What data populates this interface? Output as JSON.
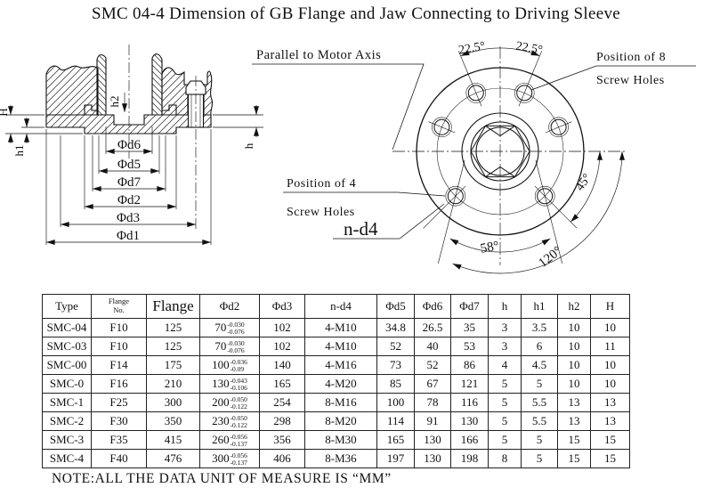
{
  "title": "SMC 04-4 Dimension of GB Flange and Jaw Connecting to Driving Sleeve",
  "note": "NOTE:ALL THE DATA UNIT OF MEASURE IS “MM”",
  "section_view": {
    "h2": "h2",
    "H": "H",
    "h1": "h1",
    "h": "h",
    "d6": "Φd6",
    "d5": "Φd5",
    "d7": "Φd7",
    "d2": "Φd2",
    "d3": "Φd3",
    "d1": "Φd1"
  },
  "front_view": {
    "parallel": "Parallel to Motor Axis",
    "pos8_1": "Position of 8",
    "pos8_2": "Screw Holes",
    "pos4_1": "Position of 4",
    "pos4_2": "Screw Holes",
    "nd4": "n-d4",
    "ang_left": "22.5°",
    "ang_right": "22.5°",
    "ang45": "45°",
    "ang58": "58°",
    "ang120": "120°"
  },
  "table": {
    "columns": [
      {
        "key": "type",
        "label": "Type",
        "width": 55
      },
      {
        "key": "flange_no",
        "label_lines": [
          "Flange",
          "No."
        ],
        "width": 62
      },
      {
        "key": "flange",
        "label": "Flange",
        "big": true,
        "width": 60
      },
      {
        "key": "d2",
        "label": "Φd2",
        "width": 67
      },
      {
        "key": "d3",
        "label": "Φd3",
        "width": 51
      },
      {
        "key": "n_d4",
        "label": "n-d4",
        "width": 81
      },
      {
        "key": "d5",
        "label": "Φd5",
        "width": 42
      },
      {
        "key": "d6",
        "label": "Φd6",
        "width": 41
      },
      {
        "key": "d7",
        "label": "Φd7",
        "width": 42
      },
      {
        "key": "h",
        "label": "h",
        "width": 37
      },
      {
        "key": "h1",
        "label": "h1",
        "width": 41
      },
      {
        "key": "h2",
        "label": "h2",
        "width": 37
      },
      {
        "key": "H",
        "label": "H",
        "width": 44
      }
    ],
    "rows": [
      {
        "type": "SMC-04",
        "flange_no": "F10",
        "flange": "125",
        "d2": {
          "base": "70",
          "upper": "-0.030",
          "lower": "-0.076"
        },
        "d3": "102",
        "n_d4": "4-M10",
        "d5": "34.8",
        "d6": "26.5",
        "d7": "35",
        "h": "3",
        "h1": "3.5",
        "h2": "10",
        "H": "10"
      },
      {
        "type": "SMC-03",
        "flange_no": "F10",
        "flange": "125",
        "d2": {
          "base": "70",
          "upper": "-0.030",
          "lower": "-0.076"
        },
        "d3": "102",
        "n_d4": "4-M10",
        "d5": "52",
        "d6": "40",
        "d7": "53",
        "h": "3",
        "h1": "6",
        "h2": "10",
        "H": "11"
      },
      {
        "type": "SMC-00",
        "flange_no": "F14",
        "flange": "175",
        "d2": {
          "base": "100",
          "upper": "-0.036",
          "lower": "-0.09"
        },
        "d3": "140",
        "n_d4": "4-M16",
        "d5": "73",
        "d6": "52",
        "d7": "86",
        "h": "4",
        "h1": "4.5",
        "h2": "10",
        "H": "10"
      },
      {
        "type": "SMC-0",
        "flange_no": "F16",
        "flange": "210",
        "d2": {
          "base": "130",
          "upper": "-0.043",
          "lower": "-0.106"
        },
        "d3": "165",
        "n_d4": "4-M20",
        "d5": "85",
        "d6": "67",
        "d7": "121",
        "h": "5",
        "h1": "5",
        "h2": "10",
        "H": "10"
      },
      {
        "type": "SMC-1",
        "flange_no": "F25",
        "flange": "300",
        "d2": {
          "base": "200",
          "upper": "-0.050",
          "lower": "-0.122"
        },
        "d3": "254",
        "n_d4": "8-M16",
        "d5": "100",
        "d6": "78",
        "d7": "116",
        "h": "5",
        "h1": "5.5",
        "h2": "13",
        "H": "13"
      },
      {
        "type": "SMC-2",
        "flange_no": "F30",
        "flange": "350",
        "d2": {
          "base": "230",
          "upper": "-0.050",
          "lower": "-0.122"
        },
        "d3": "298",
        "n_d4": "8-M20",
        "d5": "114",
        "d6": "91",
        "d7": "130",
        "h": "5",
        "h1": "5.5",
        "h2": "13",
        "H": "13"
      },
      {
        "type": "SMC-3",
        "flange_no": "F35",
        "flange": "415",
        "d2": {
          "base": "260",
          "upper": "-0.056",
          "lower": "-0.137"
        },
        "d3": "356",
        "n_d4": "8-M30",
        "d5": "165",
        "d6": "130",
        "d7": "166",
        "h": "5",
        "h1": "5",
        "h2": "15",
        "H": "15"
      },
      {
        "type": "SMC-4",
        "flange_no": "F40",
        "flange": "476",
        "d2": {
          "base": "300",
          "upper": "-0.056",
          "lower": "-0.137"
        },
        "d3": "406",
        "n_d4": "8-M36",
        "d5": "197",
        "d6": "130",
        "d7": "198",
        "h": "8",
        "h1": "5",
        "h2": "15",
        "H": "15"
      }
    ]
  }
}
